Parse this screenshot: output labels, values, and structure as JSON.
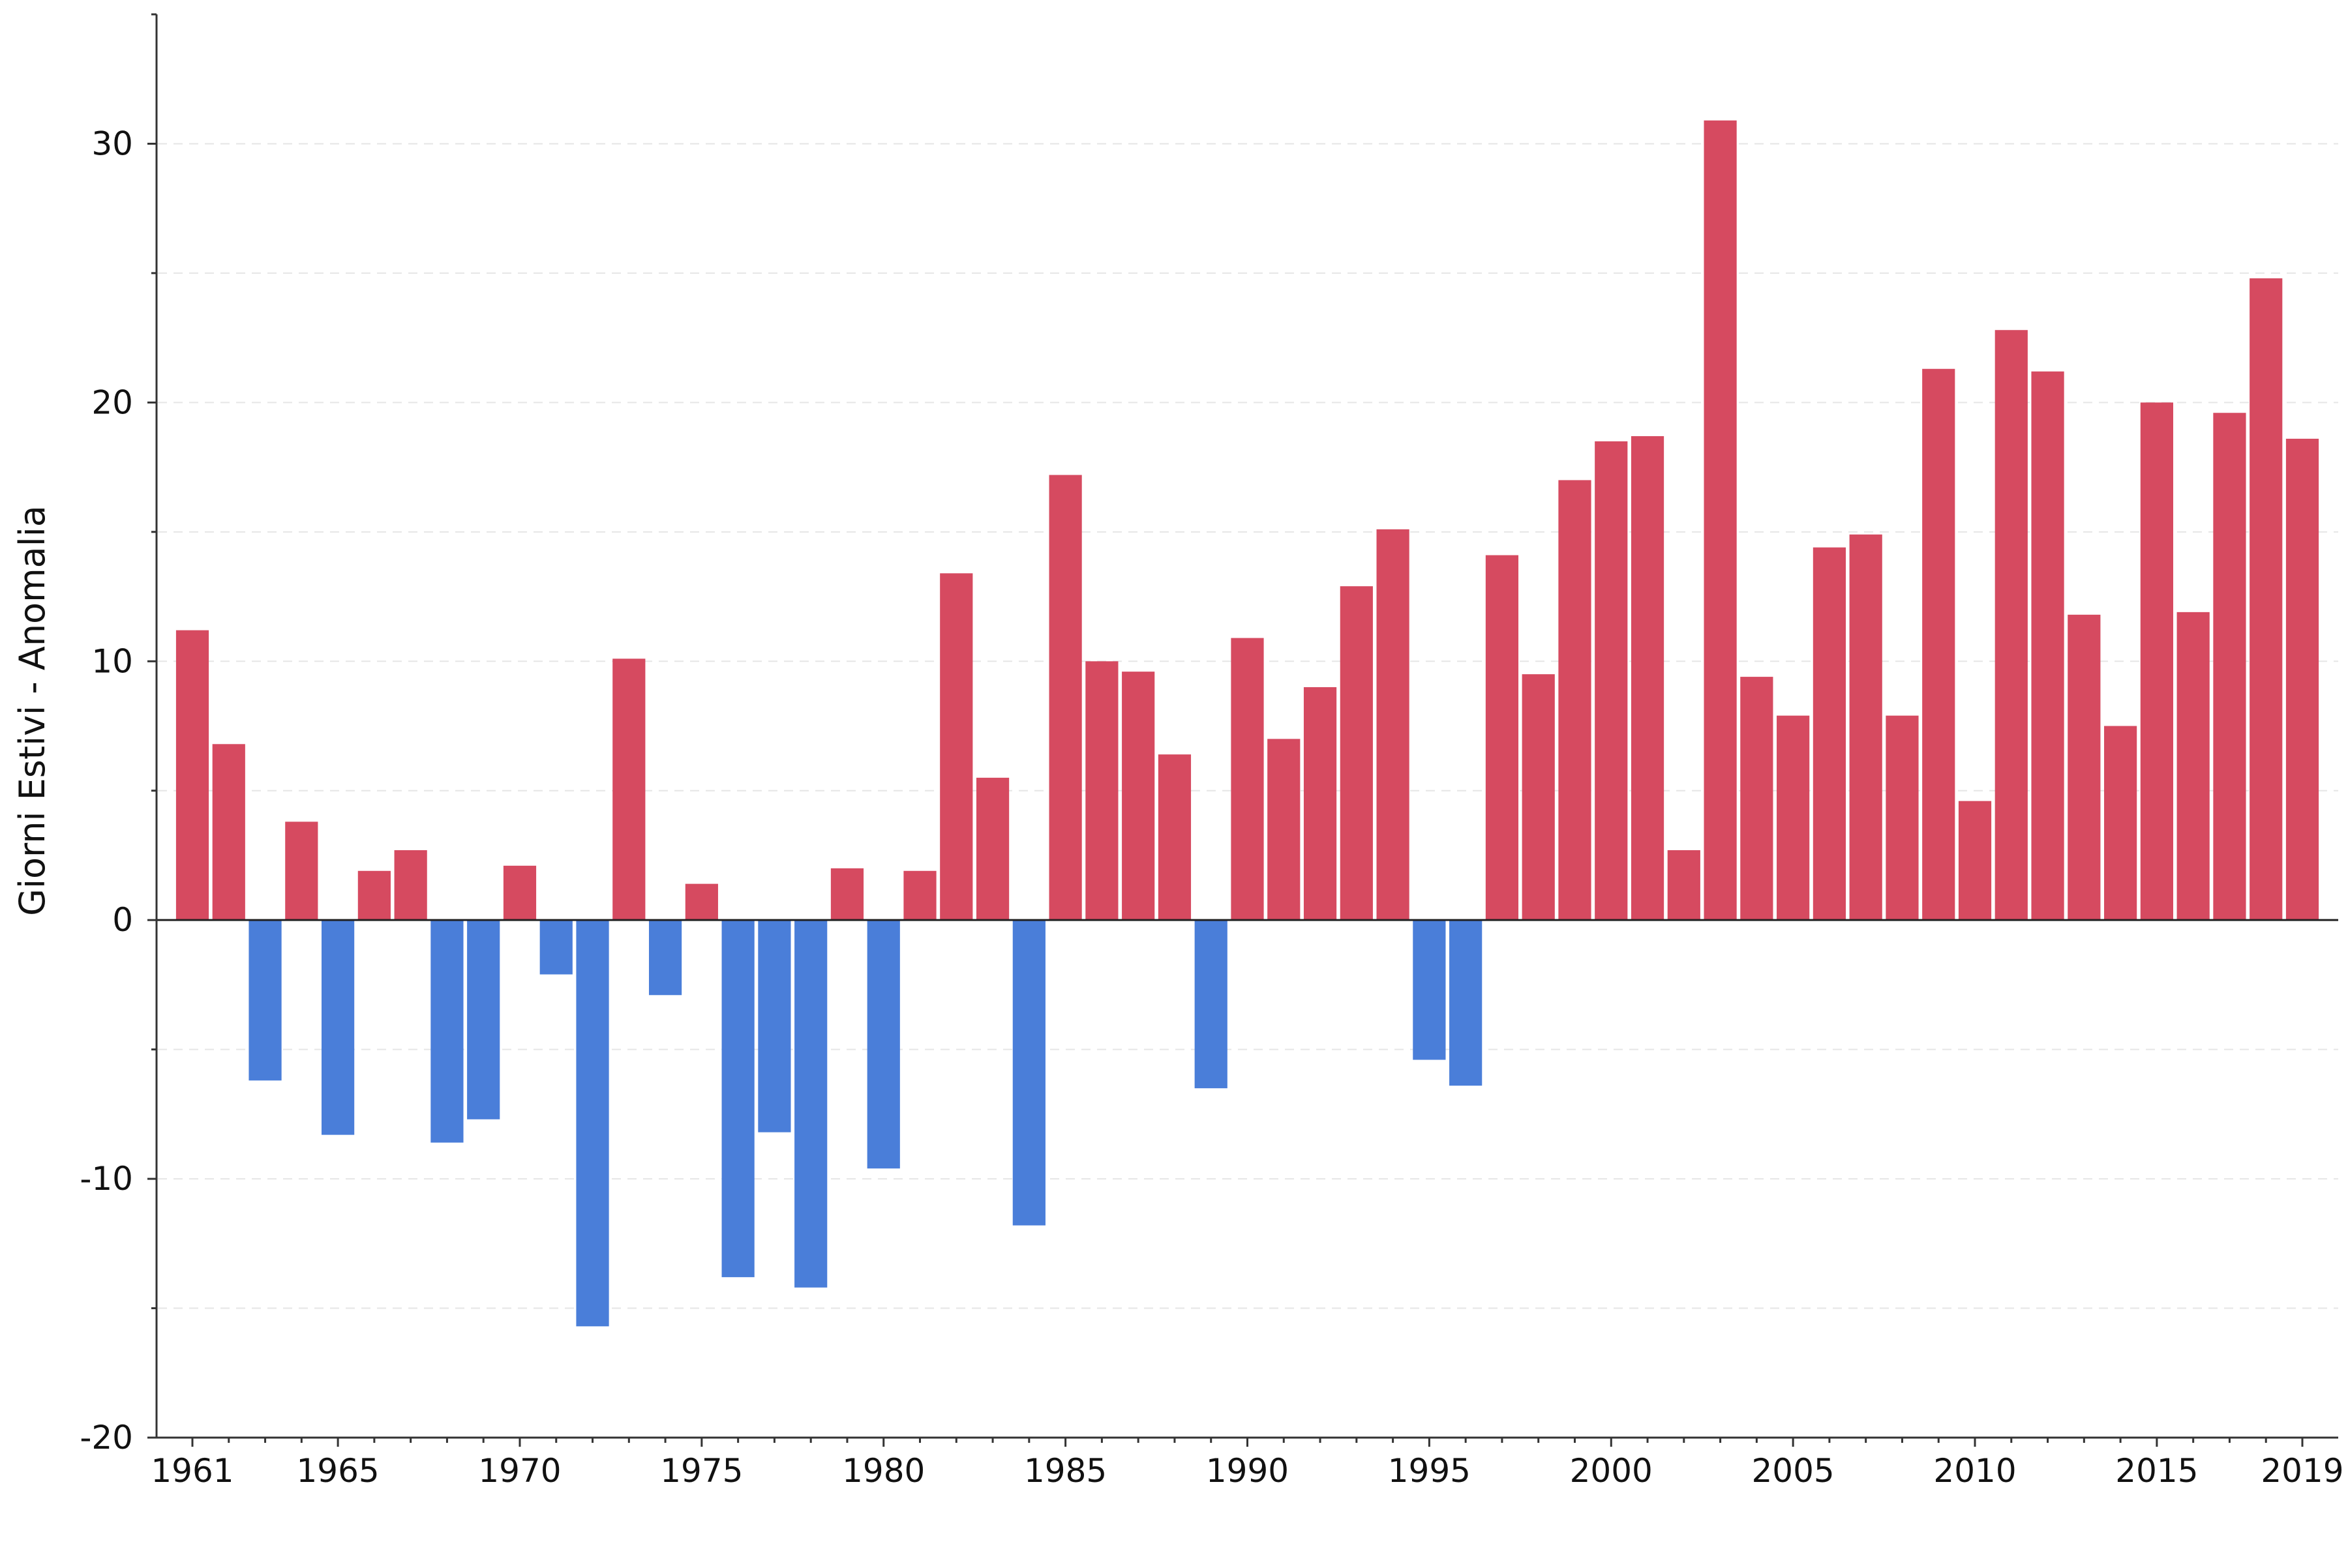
{
  "chart_data": {
    "type": "bar",
    "title": "",
    "xlabel": "",
    "ylabel": "Giorni Estivi - Anomalia",
    "ylim": [
      -20,
      35
    ],
    "yticks": [
      -20,
      -10,
      0,
      10,
      20,
      30
    ],
    "x_tick_labels": [
      1961,
      1965,
      1970,
      1975,
      1980,
      1985,
      1990,
      1995,
      2000,
      2005,
      2010,
      2015,
      2019
    ],
    "grid": "horizontal dashed",
    "colors": {
      "positive": "#d64a60",
      "negative": "#4a7ed9",
      "zero_line": "#222222",
      "grid": "#e6e6e6"
    },
    "categories": [
      1961,
      1962,
      1963,
      1964,
      1965,
      1966,
      1967,
      1968,
      1969,
      1970,
      1971,
      1972,
      1973,
      1974,
      1975,
      1976,
      1977,
      1978,
      1979,
      1980,
      1981,
      1982,
      1983,
      1984,
      1985,
      1986,
      1987,
      1988,
      1989,
      1990,
      1991,
      1992,
      1993,
      1994,
      1995,
      1996,
      1997,
      1998,
      1999,
      2000,
      2001,
      2002,
      2003,
      2004,
      2005,
      2006,
      2007,
      2008,
      2009,
      2010,
      2011,
      2012,
      2013,
      2014,
      2015,
      2016,
      2017,
      2018,
      2019
    ],
    "values": [
      11.2,
      6.8,
      -6.2,
      3.8,
      -8.3,
      1.9,
      2.7,
      -8.6,
      -7.7,
      2.1,
      -2.1,
      -15.7,
      10.1,
      -2.9,
      1.4,
      -13.8,
      -8.2,
      -14.2,
      2.0,
      -9.6,
      1.9,
      13.4,
      5.5,
      -11.8,
      17.2,
      10.0,
      9.6,
      6.4,
      -6.5,
      10.9,
      7.0,
      9.0,
      12.9,
      15.1,
      -5.4,
      -6.4,
      14.1,
      9.5,
      17.0,
      18.5,
      18.7,
      2.7,
      30.9,
      9.4,
      7.9,
      14.4,
      14.9,
      7.9,
      21.3,
      4.6,
      22.8,
      21.2,
      11.8,
      7.5,
      20.0,
      11.9,
      19.6,
      24.8,
      18.6
    ]
  }
}
